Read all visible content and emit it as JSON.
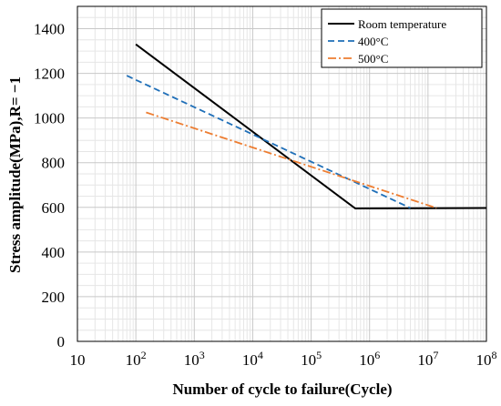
{
  "chart_data": {
    "type": "line",
    "xscale": "log",
    "xlabel": "Number of cycle to failure(Cycle)",
    "ylabel": "Stress amplitude(MPa),R= −1",
    "xlim": [
      10,
      100000000
    ],
    "ylim": [
      0,
      1500
    ],
    "x_ticks": [
      {
        "value": 10,
        "base": "10",
        "exp": ""
      },
      {
        "value": 100,
        "base": "10",
        "exp": "2"
      },
      {
        "value": 1000,
        "base": "10",
        "exp": "3"
      },
      {
        "value": 10000,
        "base": "10",
        "exp": "4"
      },
      {
        "value": 100000,
        "base": "10",
        "exp": "5"
      },
      {
        "value": 1000000,
        "base": "10",
        "exp": "6"
      },
      {
        "value": 10000000,
        "base": "10",
        "exp": "7"
      },
      {
        "value": 100000000,
        "base": "10",
        "exp": "8"
      }
    ],
    "y_ticks": [
      {
        "value": 0,
        "label": "0"
      },
      {
        "value": 200,
        "label": "200"
      },
      {
        "value": 400,
        "label": "400"
      },
      {
        "value": 600,
        "label": "600"
      },
      {
        "value": 800,
        "label": "800"
      },
      {
        "value": 1000,
        "label": "1000"
      },
      {
        "value": 1200,
        "label": "1200"
      },
      {
        "value": 1400,
        "label": "1400"
      }
    ],
    "grid": true,
    "legend_position": "top-right",
    "series": [
      {
        "name": "Room temperature",
        "color": "#000000",
        "style": "solid",
        "points": [
          [
            100,
            1330
          ],
          [
            570000,
            595
          ],
          [
            100000000,
            597
          ]
        ]
      },
      {
        "name": "400°C",
        "color": "#1f6fb8",
        "style": "dashed",
        "points": [
          [
            70,
            1190
          ],
          [
            5000000,
            597
          ]
        ]
      },
      {
        "name": "500°C",
        "color": "#ed7d31",
        "style": "dashdot",
        "points": [
          [
            150,
            1025
          ],
          [
            14000000,
            597
          ]
        ]
      }
    ]
  }
}
